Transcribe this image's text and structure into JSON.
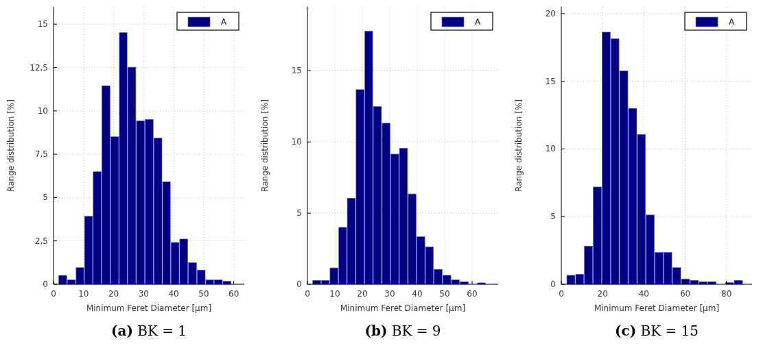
{
  "chart_data": [
    {
      "type": "histogram",
      "subtitle": "(a) BK = 1",
      "xlabel": "Minimum Feret Diameter [µm]",
      "ylabel": "Range distribution [%]",
      "bins": [
        1.6,
        4.5,
        7.4,
        10.2,
        13.1,
        16,
        18.9,
        21.8,
        24.6,
        27.5,
        30.4,
        33.3,
        36.2,
        39,
        41.9,
        44.8,
        47.7,
        50.6,
        53.4,
        56.3,
        59.2
      ],
      "series": [
        {
          "name": "A",
          "color": "#000080",
          "values": [
            0.51,
            0.25,
            0.96,
            3.92,
            6.49,
            11.45,
            8.51,
            14.52,
            12.52,
            9.43,
            9.51,
            8.43,
            5.91,
            2.41,
            2.61,
            1.25,
            0.82,
            0.25,
            0.25,
            0.17
          ]
        }
      ],
      "xlim": [
        0,
        63.5
      ],
      "xticks": [
        0,
        10,
        20,
        30,
        40,
        50,
        60
      ],
      "ylim": [
        0,
        16
      ],
      "yticks": [
        0,
        {
          "value": 2.5,
          "label": "2,5"
        },
        5,
        {
          "value": 7.5,
          "label": "7,5"
        },
        10,
        {
          "value": 12.5,
          "label": "12,5"
        },
        15
      ],
      "grid": true,
      "legend": "top right"
    },
    {
      "type": "histogram",
      "subtitle": "(b) BK = 9",
      "xlabel": "Minimum Feret Diameter [µm]",
      "ylabel": "Range distribution [%]",
      "bins": [
        1.8,
        5,
        8.1,
        11.3,
        14.4,
        17.6,
        20.8,
        23.9,
        27.1,
        30.2,
        33.4,
        36.6,
        39.7,
        42.9,
        46,
        49.2,
        52.4,
        55.5,
        58.7,
        61.8,
        65
      ],
      "series": [
        {
          "name": "A",
          "color": "#000080",
          "values": [
            0.27,
            0.27,
            1.15,
            4.0,
            6.05,
            13.68,
            17.79,
            12.5,
            11.32,
            9.15,
            9.56,
            6.35,
            3.34,
            2.63,
            1.05,
            0.63,
            0.31,
            0.18,
            0,
            0.1
          ]
        }
      ],
      "xlim": [
        0,
        69.5
      ],
      "xticks": [
        0,
        10,
        20,
        30,
        40,
        50,
        60
      ],
      "ylim": [
        0,
        19.5
      ],
      "yticks": [
        0,
        5,
        10,
        15
      ],
      "grid": true,
      "legend": "top right"
    },
    {
      "type": "histogram",
      "subtitle": "(c) BK = 15",
      "xlabel": "Minimum Feret Diameter [µm]",
      "ylabel": "Range distribution [%]",
      "bins": [
        2.5,
        6.8,
        11,
        15.3,
        19.6,
        23.9,
        28.1,
        32.4,
        36.7,
        40.9,
        45.2,
        49.5,
        53.7,
        58,
        62.3,
        66.6,
        70.8,
        75.1,
        79.4,
        83.6,
        87.9
      ],
      "series": [
        {
          "name": "A",
          "color": "#000080",
          "values": [
            0.66,
            0.74,
            2.82,
            7.19,
            18.63,
            18.14,
            15.77,
            13.0,
            11.07,
            5.12,
            2.35,
            2.35,
            1.23,
            0.39,
            0.29,
            0.19,
            0.19,
            0,
            0.12,
            0.29
          ]
        }
      ],
      "xlim": [
        0,
        92.4
      ],
      "xticks": [
        0,
        20,
        40,
        60,
        80
      ],
      "ylim": [
        0,
        20.5
      ],
      "yticks": [
        0,
        5,
        10,
        15,
        20
      ],
      "grid": true,
      "legend": "top right"
    }
  ]
}
